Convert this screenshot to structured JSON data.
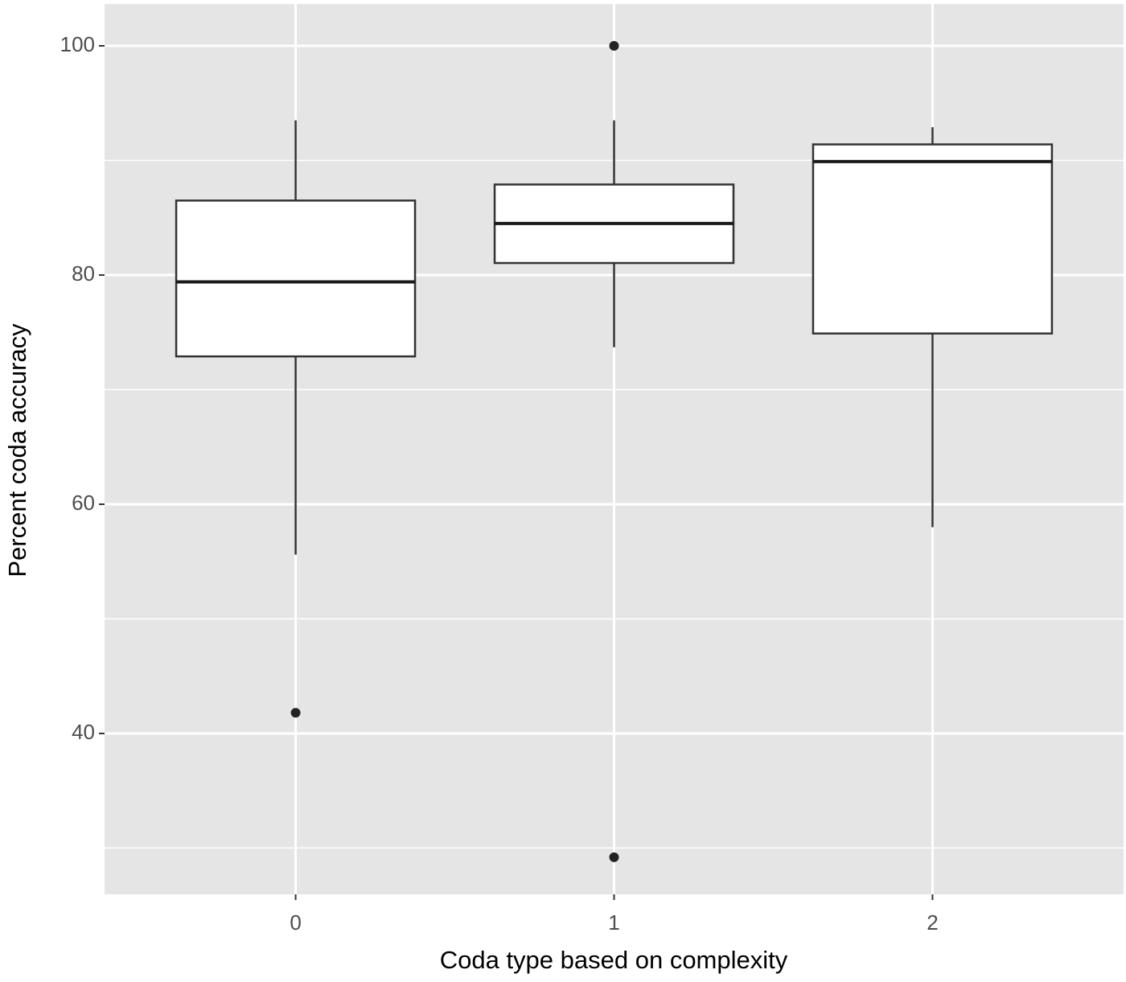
{
  "chart_data": {
    "type": "box",
    "x_label": "Coda type based on complexity",
    "y_label": "Percent coda accuracy",
    "categories": [
      "0",
      "1",
      "2"
    ],
    "boxes": [
      {
        "min": 55.6,
        "q1": 72.9,
        "median": 79.4,
        "q3": 86.5,
        "max": 93.5,
        "outliers": [
          41.8
        ]
      },
      {
        "min": 73.7,
        "q1": 81.05,
        "median": 84.5,
        "q3": 87.9,
        "max": 93.5,
        "outliers": [
          100,
          29.2
        ]
      },
      {
        "min": 58.0,
        "q1": 74.9,
        "median": 89.9,
        "q3": 91.4,
        "max": 92.9,
        "outliers": []
      }
    ],
    "ylim": [
      25.96,
      103.65
    ],
    "yticks": [
      40,
      60,
      80,
      100
    ],
    "minor_yticks": [
      30,
      50,
      70,
      90
    ],
    "grid": true
  }
}
